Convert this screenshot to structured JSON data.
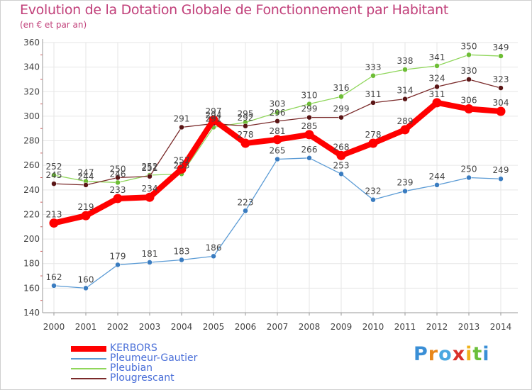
{
  "header": {
    "title": "Evolution de la Dotation Globale de Fonctionnement par Habitant",
    "subtitle": "(en € et par an)"
  },
  "brand": {
    "logo_text": "Proxiti"
  },
  "colors": {
    "title": "#c1407a",
    "legend_text": "#4a6fd8",
    "grid": "#e6e6e6",
    "axis": "#9a9a9a",
    "tick_mark": "#d05a5a"
  },
  "chart_data": {
    "type": "line",
    "title": "Evolution de la Dotation Globale de Fonctionnement par Habitant",
    "subtitle": "(en € et par an)",
    "xlabel": "",
    "ylabel": "",
    "x": [
      2000,
      2001,
      2002,
      2003,
      2004,
      2005,
      2006,
      2007,
      2008,
      2009,
      2010,
      2011,
      2012,
      2013,
      2014
    ],
    "ylim": [
      140,
      360
    ],
    "yticks": [
      140,
      160,
      180,
      200,
      220,
      240,
      260,
      280,
      300,
      320,
      340,
      360
    ],
    "grid": true,
    "legend_position": "bottom-left",
    "series": [
      {
        "name": "Pleumeur-Gautier",
        "color": "#5b9bd5",
        "dot": "#3a7cc0",
        "width": 1.3,
        "marker": 3.5,
        "values": [
          162,
          160,
          179,
          181,
          183,
          186,
          223,
          265,
          266,
          253,
          232,
          239,
          244,
          250,
          249
        ]
      },
      {
        "name": "Pleubian",
        "color": "#8fd65a",
        "dot": "#6dbd35",
        "width": 1.3,
        "marker": 3.5,
        "values": [
          252,
          247,
          246,
          252,
          253,
          291,
          295,
          303,
          310,
          316,
          333,
          338,
          341,
          350,
          349
        ]
      },
      {
        "name": "Plougrescant",
        "color": "#7a2a2a",
        "dot": "#5a1515",
        "width": 1.3,
        "marker": 3.5,
        "values": [
          245,
          244,
          250,
          251,
          291,
          294,
          292,
          296,
          299,
          299,
          311,
          314,
          324,
          330,
          323
        ]
      },
      {
        "name": "KERBORS",
        "color": "#ff0000",
        "dot": "#ff0000",
        "width": 8,
        "marker": 6.5,
        "values": [
          213,
          219,
          233,
          234,
          257,
          297,
          278,
          281,
          285,
          268,
          278,
          289,
          311,
          306,
          304
        ]
      }
    ],
    "legend": [
      "KERBORS",
      "Pleumeur-Gautier",
      "Pleubian",
      "Plougrescant"
    ]
  }
}
